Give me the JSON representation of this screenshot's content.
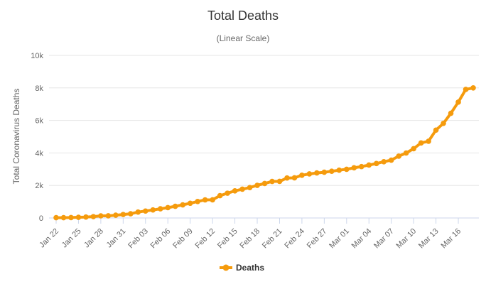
{
  "chart_data": {
    "type": "line",
    "title": "Total Deaths",
    "subtitle": "(Linear Scale)",
    "ylabel": "Total Coronavirus Deaths",
    "xlabel": "",
    "ylim": [
      0,
      10000
    ],
    "y_ticks": [
      0,
      2000,
      4000,
      6000,
      8000,
      10000
    ],
    "y_tick_labels": [
      "0",
      "2k",
      "4k",
      "6k",
      "8k",
      "10k"
    ],
    "x_start": "2020-01-22",
    "grid": true,
    "legend_position": "bottom-center",
    "series_color": "#f59b0d",
    "categories": [
      "Jan 22",
      "Jan 23",
      "Jan 24",
      "Jan 25",
      "Jan 26",
      "Jan 27",
      "Jan 28",
      "Jan 29",
      "Jan 30",
      "Jan 31",
      "Feb 01",
      "Feb 02",
      "Feb 03",
      "Feb 04",
      "Feb 05",
      "Feb 06",
      "Feb 07",
      "Feb 08",
      "Feb 09",
      "Feb 10",
      "Feb 11",
      "Feb 12",
      "Feb 13",
      "Feb 14",
      "Feb 15",
      "Feb 16",
      "Feb 17",
      "Feb 18",
      "Feb 19",
      "Feb 20",
      "Feb 21",
      "Feb 22",
      "Feb 23",
      "Feb 24",
      "Feb 25",
      "Feb 26",
      "Feb 27",
      "Feb 28",
      "Feb 29",
      "Mar 01",
      "Mar 02",
      "Mar 03",
      "Mar 04",
      "Mar 05",
      "Mar 06",
      "Mar 07",
      "Mar 08",
      "Mar 09",
      "Mar 10",
      "Mar 11",
      "Mar 12",
      "Mar 13",
      "Mar 14",
      "Mar 15",
      "Mar 16",
      "Mar 17",
      "Mar 18"
    ],
    "x_tick_labels": [
      "Jan 22",
      "Jan 25",
      "Jan 28",
      "Jan 31",
      "Feb 03",
      "Feb 06",
      "Feb 09",
      "Feb 12",
      "Feb 15",
      "Feb 18",
      "Feb 21",
      "Feb 24",
      "Feb 27",
      "Mar 01",
      "Mar 04",
      "Mar 07",
      "Mar 10",
      "Mar 13",
      "Mar 16"
    ],
    "series": [
      {
        "name": "Deaths",
        "values": [
          17,
          18,
          26,
          42,
          56,
          82,
          131,
          133,
          171,
          213,
          259,
          362,
          426,
          492,
          564,
          634,
          719,
          806,
          906,
          1013,
          1113,
          1118,
          1371,
          1523,
          1666,
          1770,
          1868,
          2007,
          2122,
          2247,
          2251,
          2458,
          2469,
          2629,
          2708,
          2770,
          2814,
          2872,
          2941,
          2996,
          3085,
          3160,
          3254,
          3348,
          3460,
          3558,
          3803,
          3996,
          4262,
          4615,
          4720,
          5404,
          5819,
          6440,
          7126,
          7905,
          8000
        ]
      }
    ]
  }
}
